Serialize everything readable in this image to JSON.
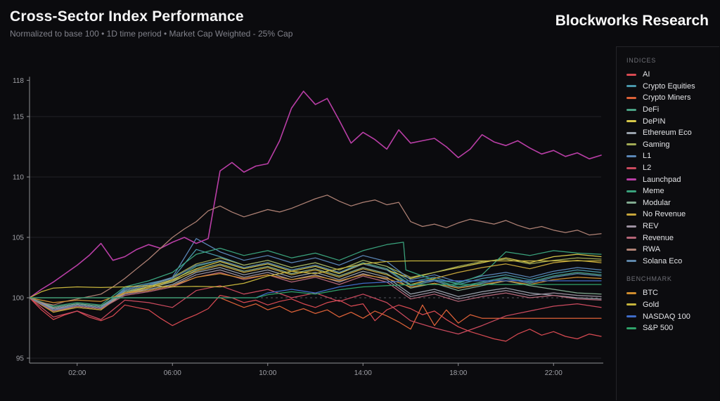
{
  "header": {
    "title": "Cross-Sector Index Performance",
    "subtitle": "Normalized to base 100 • 1D time period • Market Cap Weighted - 25% Cap",
    "brand": "Blockworks Research"
  },
  "legend": {
    "indices_label": "INDICES",
    "benchmark_label": "BENCHMARK"
  },
  "colors": {
    "background": "#0b0b0e",
    "panel_border": "#242428",
    "axis": "#8f9094",
    "tick_label": "#9fa0a6",
    "grid": "#202025",
    "baseline_dashed": "#56565c"
  },
  "chart_data": {
    "type": "line",
    "title": "Cross-Sector Index Performance",
    "normalized_base": 100,
    "time_period": "1D",
    "weighting": "Market Cap Weighted - 25% Cap",
    "grid": "horizontal",
    "legend_position": "right",
    "xlim": [
      0,
      24
    ],
    "ylim": [
      94.6,
      118.3
    ],
    "yticks": [
      118,
      115,
      110,
      105,
      100,
      95
    ],
    "baseline": 100,
    "xticks": [
      {
        "t": 2,
        "label": "02:00"
      },
      {
        "t": 6,
        "label": "06:00"
      },
      {
        "t": 10,
        "label": "10:00"
      },
      {
        "t": 14,
        "label": "14:00"
      },
      {
        "t": 18,
        "label": "18:00"
      },
      {
        "t": 22,
        "label": "22:00"
      }
    ],
    "x_hours": [
      0,
      1,
      2,
      3,
      4,
      5,
      6,
      7,
      8,
      9,
      10,
      11,
      12,
      13,
      14,
      15,
      16,
      17,
      18,
      19,
      20,
      21,
      22,
      23,
      24
    ],
    "x_half": [
      0,
      0.5,
      1,
      1.5,
      2,
      2.5,
      3,
      3.5,
      4,
      4.5,
      5,
      5.5,
      6,
      6.5,
      7,
      7.5,
      8,
      8.5,
      9,
      9.5,
      10,
      10.5,
      11,
      11.5,
      12,
      12.5,
      13,
      13.5,
      14,
      14.5,
      15,
      15.5,
      16,
      16.5,
      17,
      17.5,
      18,
      18.5,
      19,
      19.5,
      20,
      20.5,
      21,
      21.5,
      22,
      22.5,
      23,
      23.5,
      24
    ],
    "series": [
      {
        "name": "AI",
        "group": "INDICES",
        "color": "#d84a52",
        "xref": "x_half",
        "values": [
          100,
          99.0,
          98.2,
          98.6,
          98.9,
          98.4,
          98.1,
          98.5,
          99.4,
          99.2,
          99.0,
          98.3,
          97.7,
          98.2,
          98.6,
          99.1,
          100.2,
          100.0,
          99.6,
          99.8,
          99.4,
          99.7,
          99.9,
          99.5,
          99.2,
          99.6,
          99.8,
          99.3,
          99.5,
          98.1,
          99.0,
          99.4,
          99.1,
          98.6,
          98.9,
          98.2,
          97.6,
          97.2,
          96.9,
          96.6,
          96.4,
          97.0,
          97.4,
          96.9,
          97.2,
          96.8,
          96.6,
          97.0,
          96.8
        ]
      },
      {
        "name": "Crypto Equities",
        "group": "INDICES",
        "color": "#4a98ac",
        "xref": "x_hours",
        "values": [
          100,
          99.0,
          99.3,
          99.1,
          100.8,
          101.2,
          101.6,
          104.0,
          103.4,
          102.7,
          103.1,
          102.5,
          102.9,
          102.3,
          103.1,
          102.6,
          101.3,
          101.7,
          101.1,
          101.6,
          101.9,
          101.5,
          102.0,
          102.3,
          102.1
        ]
      },
      {
        "name": "Crypto Miners",
        "group": "INDICES",
        "color": "#dd6138",
        "xref": "x_half",
        "values": [
          100,
          100,
          100,
          100,
          100,
          100,
          100,
          100,
          100,
          100,
          100,
          100,
          100,
          100,
          100,
          100,
          100,
          99.6,
          99.2,
          99.5,
          99.0,
          99.3,
          98.8,
          99.1,
          98.7,
          99.0,
          98.4,
          98.8,
          98.3,
          98.9,
          98.5,
          98.0,
          97.4,
          99.4,
          97.7,
          99.0,
          97.9,
          98.6,
          98.3,
          98.3,
          98.3,
          98.3,
          98.3,
          98.3,
          98.3,
          98.3,
          98.3,
          98.3,
          98.3
        ]
      },
      {
        "name": "DeFi",
        "group": "INDICES",
        "color": "#4aa184",
        "xref": "x_hours",
        "values": [
          100,
          99.2,
          99.5,
          99.3,
          100.6,
          101.0,
          101.4,
          102.6,
          103.1,
          102.5,
          102.9,
          102.3,
          102.7,
          102.1,
          102.9,
          102.4,
          101.1,
          101.5,
          100.9,
          101.3,
          101.7,
          101.3,
          101.8,
          102.1,
          101.9
        ]
      },
      {
        "name": "DePIN",
        "group": "INDICES",
        "color": "#d7c84a",
        "xref": "x_hours",
        "values": [
          100,
          99.0,
          99.4,
          99.2,
          100.5,
          100.9,
          101.5,
          102.4,
          103.0,
          102.4,
          102.8,
          102.2,
          102.6,
          102.0,
          102.8,
          102.3,
          101.6,
          102.1,
          102.5,
          102.9,
          103.3,
          102.9,
          103.4,
          103.6,
          103.4
        ]
      },
      {
        "name": "Ethereum Eco",
        "group": "INDICES",
        "color": "#9aa3ad",
        "xref": "x_hours",
        "values": [
          100,
          99.1,
          99.4,
          99.2,
          100.4,
          100.7,
          101.1,
          102.1,
          102.5,
          101.9,
          102.3,
          101.7,
          102.1,
          101.5,
          102.2,
          101.7,
          100.3,
          100.7,
          100.1,
          100.5,
          100.8,
          100.4,
          100.2,
          100.0,
          99.9
        ]
      },
      {
        "name": "Gaming",
        "group": "INDICES",
        "color": "#a2ab55",
        "xref": "x_hours",
        "values": [
          100,
          98.9,
          99.2,
          99.0,
          100.6,
          101.0,
          101.7,
          102.8,
          103.3,
          102.7,
          103.1,
          102.5,
          102.9,
          102.3,
          103.1,
          102.6,
          101.7,
          102.1,
          102.6,
          103.0,
          103.2,
          102.8,
          103.1,
          103.3,
          103.2
        ]
      },
      {
        "name": "L1",
        "group": "INDICES",
        "color": "#5b87b8",
        "xref": "x_hours",
        "values": [
          100,
          99.0,
          99.3,
          99.1,
          100.7,
          101.1,
          101.7,
          104.9,
          103.8,
          103.1,
          103.5,
          102.9,
          103.3,
          102.7,
          103.5,
          103.0,
          101.5,
          101.9,
          101.3,
          101.8,
          102.1,
          101.7,
          102.2,
          102.5,
          102.3
        ]
      },
      {
        "name": "L2",
        "group": "INDICES",
        "color": "#cb4a5e",
        "xref": "x_hours",
        "values": [
          100,
          98.4,
          98.9,
          98.2,
          99.8,
          99.6,
          99.2,
          100.6,
          101.0,
          100.3,
          100.7,
          100.0,
          100.4,
          99.7,
          100.3,
          99.6,
          98.1,
          97.5,
          97.0,
          97.7,
          98.5,
          98.9,
          99.3,
          99.5,
          99.2
        ]
      },
      {
        "name": "Launchpad",
        "group": "INDICES",
        "color": "#b93ea6",
        "xref": "x_half",
        "values": [
          100,
          100.7,
          101.3,
          102.0,
          102.7,
          103.5,
          104.5,
          103.1,
          103.4,
          104.0,
          104.4,
          104.1,
          104.6,
          105.0,
          104.5,
          104.9,
          110.5,
          111.2,
          110.4,
          110.9,
          111.1,
          113.0,
          115.7,
          117.1,
          116.0,
          116.5,
          114.7,
          112.8,
          113.7,
          113.1,
          112.3,
          113.9,
          112.8,
          113.0,
          113.2,
          112.5,
          111.6,
          112.3,
          113.5,
          112.9,
          112.6,
          113.0,
          112.4,
          111.9,
          112.2,
          111.7,
          112.0,
          111.5,
          111.8
        ]
      },
      {
        "name": "Meme",
        "group": "INDICES",
        "color": "#3aa37d",
        "x": [
          0,
          1,
          2,
          3,
          4,
          5,
          6,
          7,
          8,
          9,
          10,
          11,
          12,
          13,
          14,
          15,
          15.7,
          15.8,
          16.5,
          17,
          18,
          19,
          20,
          21,
          22,
          23,
          24
        ],
        "values": [
          100,
          99.3,
          99.6,
          99.4,
          100.9,
          101.4,
          102.1,
          103.6,
          104.1,
          103.5,
          103.9,
          103.3,
          103.7,
          103.1,
          103.9,
          104.4,
          104.6,
          102.3,
          101.8,
          101.5,
          101.2,
          101.9,
          103.8,
          103.5,
          103.9,
          103.7,
          103.6
        ]
      },
      {
        "name": "Modular",
        "group": "INDICES",
        "color": "#82ab90",
        "xref": "x_hours",
        "values": [
          100,
          99.2,
          99.5,
          99.3,
          100.5,
          100.8,
          101.3,
          102.3,
          102.8,
          102.2,
          102.6,
          102.0,
          102.4,
          101.8,
          102.5,
          102.0,
          100.8,
          101.2,
          100.6,
          101.0,
          101.4,
          101.0,
          100.7,
          100.4,
          100.3
        ]
      },
      {
        "name": "No Revenue",
        "group": "INDICES",
        "color": "#c7a63b",
        "xref": "x_hours",
        "values": [
          100,
          98.8,
          99.2,
          99.0,
          100.4,
          100.8,
          101.4,
          102.2,
          102.7,
          102.1,
          102.5,
          101.9,
          102.3,
          101.7,
          102.4,
          101.9,
          101.1,
          101.6,
          102.1,
          102.5,
          102.8,
          102.4,
          102.9,
          103.1,
          102.9
        ]
      },
      {
        "name": "REV",
        "group": "INDICES",
        "color": "#9e92a2",
        "xref": "x_hours",
        "values": [
          100,
          99.1,
          99.4,
          99.2,
          100.3,
          100.6,
          101.0,
          101.9,
          102.3,
          101.7,
          102.1,
          101.5,
          101.9,
          101.3,
          102.0,
          101.5,
          100.1,
          100.5,
          99.9,
          100.3,
          100.6,
          100.2,
          100.4,
          100.2,
          100.1
        ]
      },
      {
        "name": "Revenue",
        "group": "INDICES",
        "color": "#b56577",
        "xref": "x_hours",
        "values": [
          100,
          98.9,
          99.3,
          99.1,
          100.2,
          100.5,
          100.9,
          101.7,
          102.1,
          101.5,
          101.9,
          101.3,
          101.7,
          101.1,
          101.8,
          101.3,
          99.9,
          100.3,
          99.7,
          100.1,
          100.4,
          100.0,
          100.2,
          99.9,
          99.8
        ]
      },
      {
        "name": "RWA",
        "group": "INDICES",
        "color": "#b08275",
        "xref": "x_half",
        "values": [
          100,
          99.6,
          99.4,
          99.7,
          99.9,
          100.1,
          100.3,
          100.9,
          101.6,
          102.4,
          103.2,
          104.1,
          105.0,
          105.7,
          106.3,
          107.2,
          107.6,
          107.1,
          106.7,
          107.0,
          107.3,
          107.1,
          107.4,
          107.8,
          108.2,
          108.5,
          108.0,
          107.6,
          107.9,
          108.1,
          107.7,
          107.9,
          106.3,
          105.9,
          106.1,
          105.8,
          106.2,
          106.5,
          106.3,
          106.1,
          106.4,
          106.0,
          105.7,
          105.9,
          105.6,
          105.4,
          105.6,
          105.2,
          105.3
        ]
      },
      {
        "name": "Solana Eco",
        "group": "INDICES",
        "color": "#5e87ab",
        "xref": "x_hours",
        "values": [
          100,
          99.0,
          99.4,
          99.2,
          100.6,
          101.0,
          101.6,
          102.7,
          103.1,
          102.5,
          102.9,
          102.3,
          102.7,
          102.1,
          102.8,
          102.3,
          101.0,
          101.4,
          100.8,
          101.2,
          101.6,
          101.2,
          101.7,
          102.0,
          101.8
        ]
      },
      {
        "name": "BTC",
        "group": "BENCHMARK",
        "color": "#cf8c2e",
        "xref": "x_hours",
        "values": [
          100,
          99.6,
          99.8,
          99.7,
          100.4,
          100.6,
          101.0,
          101.7,
          102.0,
          101.6,
          101.9,
          101.5,
          101.8,
          101.4,
          101.9,
          101.6,
          100.9,
          101.2,
          100.8,
          101.1,
          101.4,
          101.1,
          101.5,
          101.7,
          101.6
        ]
      },
      {
        "name": "Gold",
        "group": "BENCHMARK",
        "color": "#c6b43c",
        "x": [
          0,
          0.5,
          1,
          2,
          3,
          4,
          5,
          6,
          7,
          8,
          9,
          10,
          11,
          12,
          13,
          14,
          15,
          16,
          24
        ],
        "values": [
          100,
          100.5,
          100.8,
          100.9,
          100.85,
          100.9,
          101.0,
          100.9,
          100.95,
          100.9,
          101.2,
          101.8,
          102.2,
          102.0,
          102.4,
          102.8,
          103.0,
          103.05,
          103.05
        ]
      },
      {
        "name": "NASDAQ 100",
        "group": "BENCHMARK",
        "color": "#3f6cc9",
        "x": [
          0,
          9.5,
          10,
          11,
          12,
          13,
          14,
          15,
          16,
          24
        ],
        "values": [
          100,
          100,
          100.4,
          100.7,
          100.4,
          100.9,
          101.2,
          101.3,
          101.4,
          101.4
        ]
      },
      {
        "name": "S&P 500",
        "group": "BENCHMARK",
        "color": "#2fa269",
        "x": [
          0,
          9.5,
          10,
          11,
          12,
          13,
          14,
          15,
          16,
          24
        ],
        "values": [
          100,
          100,
          100.25,
          100.5,
          100.3,
          100.65,
          100.9,
          101.0,
          101.1,
          101.1
        ]
      }
    ]
  }
}
